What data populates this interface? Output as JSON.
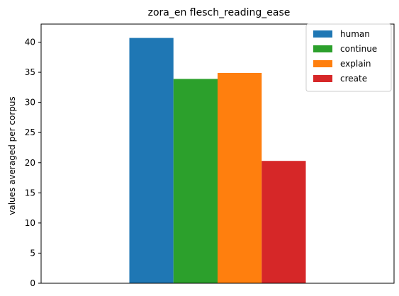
{
  "chart_data": {
    "type": "bar",
    "title": "zora_en flesch_reading_ease",
    "xlabel": "",
    "ylabel": "values averaged per corpus",
    "categories": [
      ""
    ],
    "ylim": [
      0,
      43
    ],
    "yticks": [
      0,
      5,
      10,
      15,
      20,
      25,
      30,
      35,
      40
    ],
    "grid": false,
    "legend_position": "top-right",
    "series": [
      {
        "name": "human",
        "values": [
          40.7
        ],
        "color": "#1f77b4"
      },
      {
        "name": "continue",
        "values": [
          33.9
        ],
        "color": "#2ca02c"
      },
      {
        "name": "explain",
        "values": [
          34.9
        ],
        "color": "#ff7f0e"
      },
      {
        "name": "create",
        "values": [
          20.3
        ],
        "color": "#d62728"
      }
    ]
  }
}
